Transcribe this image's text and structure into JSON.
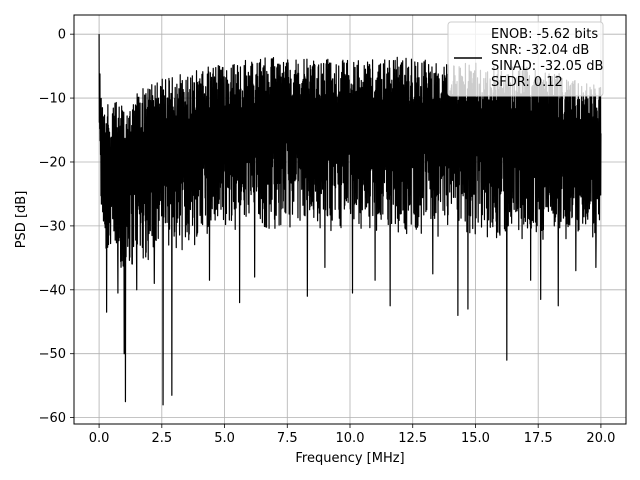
{
  "chart_data": {
    "type": "line",
    "title": "",
    "xlabel": "Frequency [MHz]",
    "ylabel": "PSD [dB]",
    "xlim": [
      -1.0,
      21.0
    ],
    "ylim": [
      -61.0,
      3.0
    ],
    "xticks": [
      0.0,
      2.5,
      5.0,
      7.5,
      10.0,
      12.5,
      15.0,
      17.5,
      20.0
    ],
    "xtick_labels": [
      "0.0",
      "2.5",
      "5.0",
      "7.5",
      "10.0",
      "12.5",
      "15.0",
      "17.5",
      "20.0"
    ],
    "yticks": [
      0,
      -10,
      -20,
      -30,
      -40,
      -50,
      -60
    ],
    "ytick_labels": [
      "0",
      "−10",
      "−20",
      "−30",
      "−40",
      "−50",
      "−60"
    ],
    "grid": true,
    "series": [
      {
        "color": "#000000",
        "envelope": {
          "x": [
            0.0,
            0.05,
            0.2,
            0.5,
            1.0,
            1.5,
            2.0,
            2.5,
            3.0,
            3.5,
            4.0,
            4.5,
            5.0,
            6.0,
            7.0,
            7.5,
            8.0,
            9.0,
            10.0,
            11.0,
            12.0,
            12.5,
            13.0,
            14.0,
            15.0,
            16.0,
            17.0,
            18.0,
            19.0,
            20.0
          ],
          "upper": [
            0.0,
            -8,
            -11,
            -11,
            -10,
            -9,
            -8,
            -7,
            -6.5,
            -6,
            -5.5,
            -5,
            -4.5,
            -4,
            -3.5,
            -3.5,
            -4,
            -3.5,
            -4,
            -4,
            -3.5,
            -3.5,
            -4,
            -4,
            -4.5,
            -5,
            -5,
            -6,
            -6.5,
            -8
          ],
          "lower": [
            -12,
            -24,
            -32,
            -34,
            -35,
            -34,
            -33,
            -32,
            -31,
            -31,
            -30,
            -30,
            -29,
            -29,
            -28,
            -28,
            -28,
            -28,
            -28,
            -29,
            -29,
            -29,
            -29,
            -29,
            -30,
            -30,
            -30,
            -30,
            -30,
            -30
          ]
        },
        "dips": [
          {
            "x": 0.3,
            "y": -43.5
          },
          {
            "x": 0.75,
            "y": -40.5
          },
          {
            "x": 1.0,
            "y": -50.0
          },
          {
            "x": 1.05,
            "y": -57.5
          },
          {
            "x": 1.5,
            "y": -40.0
          },
          {
            "x": 2.2,
            "y": -39.0
          },
          {
            "x": 2.55,
            "y": -58.0
          },
          {
            "x": 2.9,
            "y": -56.5
          },
          {
            "x": 4.4,
            "y": -38.5
          },
          {
            "x": 5.6,
            "y": -42.0
          },
          {
            "x": 6.2,
            "y": -38.0
          },
          {
            "x": 8.3,
            "y": -41.0
          },
          {
            "x": 9.0,
            "y": -36.5
          },
          {
            "x": 10.1,
            "y": -40.5
          },
          {
            "x": 11.0,
            "y": -38.5
          },
          {
            "x": 11.6,
            "y": -42.5
          },
          {
            "x": 13.3,
            "y": -37.5
          },
          {
            "x": 14.3,
            "y": -44.0
          },
          {
            "x": 14.7,
            "y": -43.0
          },
          {
            "x": 16.25,
            "y": -51.0
          },
          {
            "x": 17.2,
            "y": -38.5
          },
          {
            "x": 17.6,
            "y": -41.5
          },
          {
            "x": 18.3,
            "y": -42.5
          },
          {
            "x": 19.0,
            "y": -37.0
          },
          {
            "x": 19.8,
            "y": -36.5
          }
        ]
      }
    ],
    "legend": {
      "placement": "top-right",
      "entries": [
        "ENOB: -5.62 bits",
        "SNR: -32.04 dB",
        "SINAD: -32.05 dB",
        "SFDR: 0.12"
      ]
    }
  }
}
